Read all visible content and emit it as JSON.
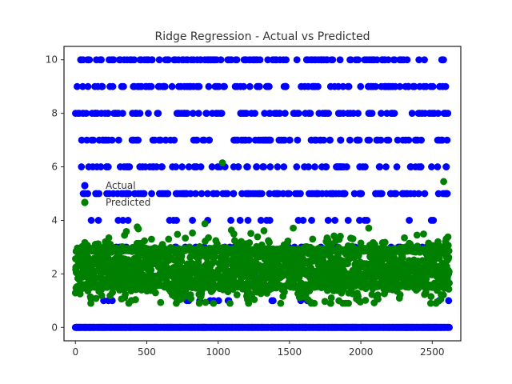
{
  "chart_data": {
    "type": "scatter",
    "title": "Ridge Regression - Actual vs Predicted",
    "xlabel": "",
    "ylabel": "",
    "xlim": [
      -80,
      2700
    ],
    "ylim": [
      -0.5,
      10.5
    ],
    "xticks": [
      0,
      500,
      1000,
      1500,
      2000,
      2500
    ],
    "yticks": [
      0,
      2,
      4,
      6,
      8,
      10
    ],
    "xtick_labels": [
      "0",
      "500",
      "1000",
      "1500",
      "2000",
      "2500"
    ],
    "ytick_labels": [
      "0",
      "2",
      "4",
      "6",
      "8",
      "10"
    ],
    "grid": false,
    "legend_position": "center-left",
    "n_points": 2620,
    "series": [
      {
        "name": "Actual",
        "color": "#0000ff",
        "marker": "circle",
        "description": "Discrete integer target values; the large majority are 0, with sparser bands at 1-10",
        "levels": [
          0,
          1,
          2,
          3,
          4,
          5,
          6,
          7,
          8,
          9,
          10
        ]
      },
      {
        "name": "Predicted",
        "color": "#008000",
        "marker": "circle",
        "description": "Continuous predictions mostly between about 1.0 and 3.2, dense band near 2.9",
        "range": [
          0.5,
          6.2
        ],
        "dense_band": 2.9,
        "outliers": [
          {
            "x": 1030,
            "y": 6.15
          },
          {
            "x": 2580,
            "y": 5.45
          }
        ]
      }
    ]
  }
}
